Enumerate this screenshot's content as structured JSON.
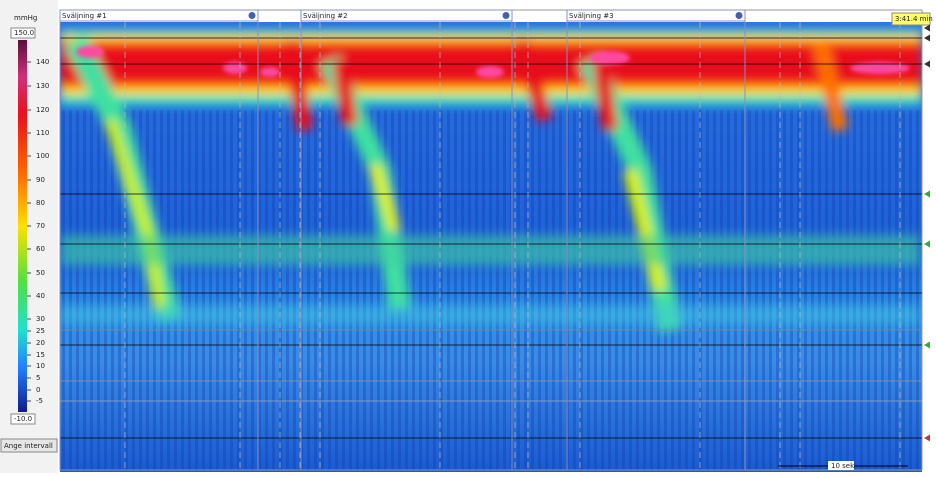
{
  "sidebar": {
    "unit": "mmHg",
    "max": "150.0",
    "min": "-10.0",
    "scale_labels": [
      140,
      130,
      120,
      110,
      100,
      90,
      80,
      70,
      60,
      50,
      40,
      30,
      25,
      20,
      15,
      10,
      5,
      0,
      -5
    ],
    "button": "Ange intervall"
  },
  "swallows": [
    "Sväljning #1",
    "Sväljning #2",
    "Sväljning #3"
  ],
  "time": "3:41.4 min",
  "scale_bar": "10 sek"
}
